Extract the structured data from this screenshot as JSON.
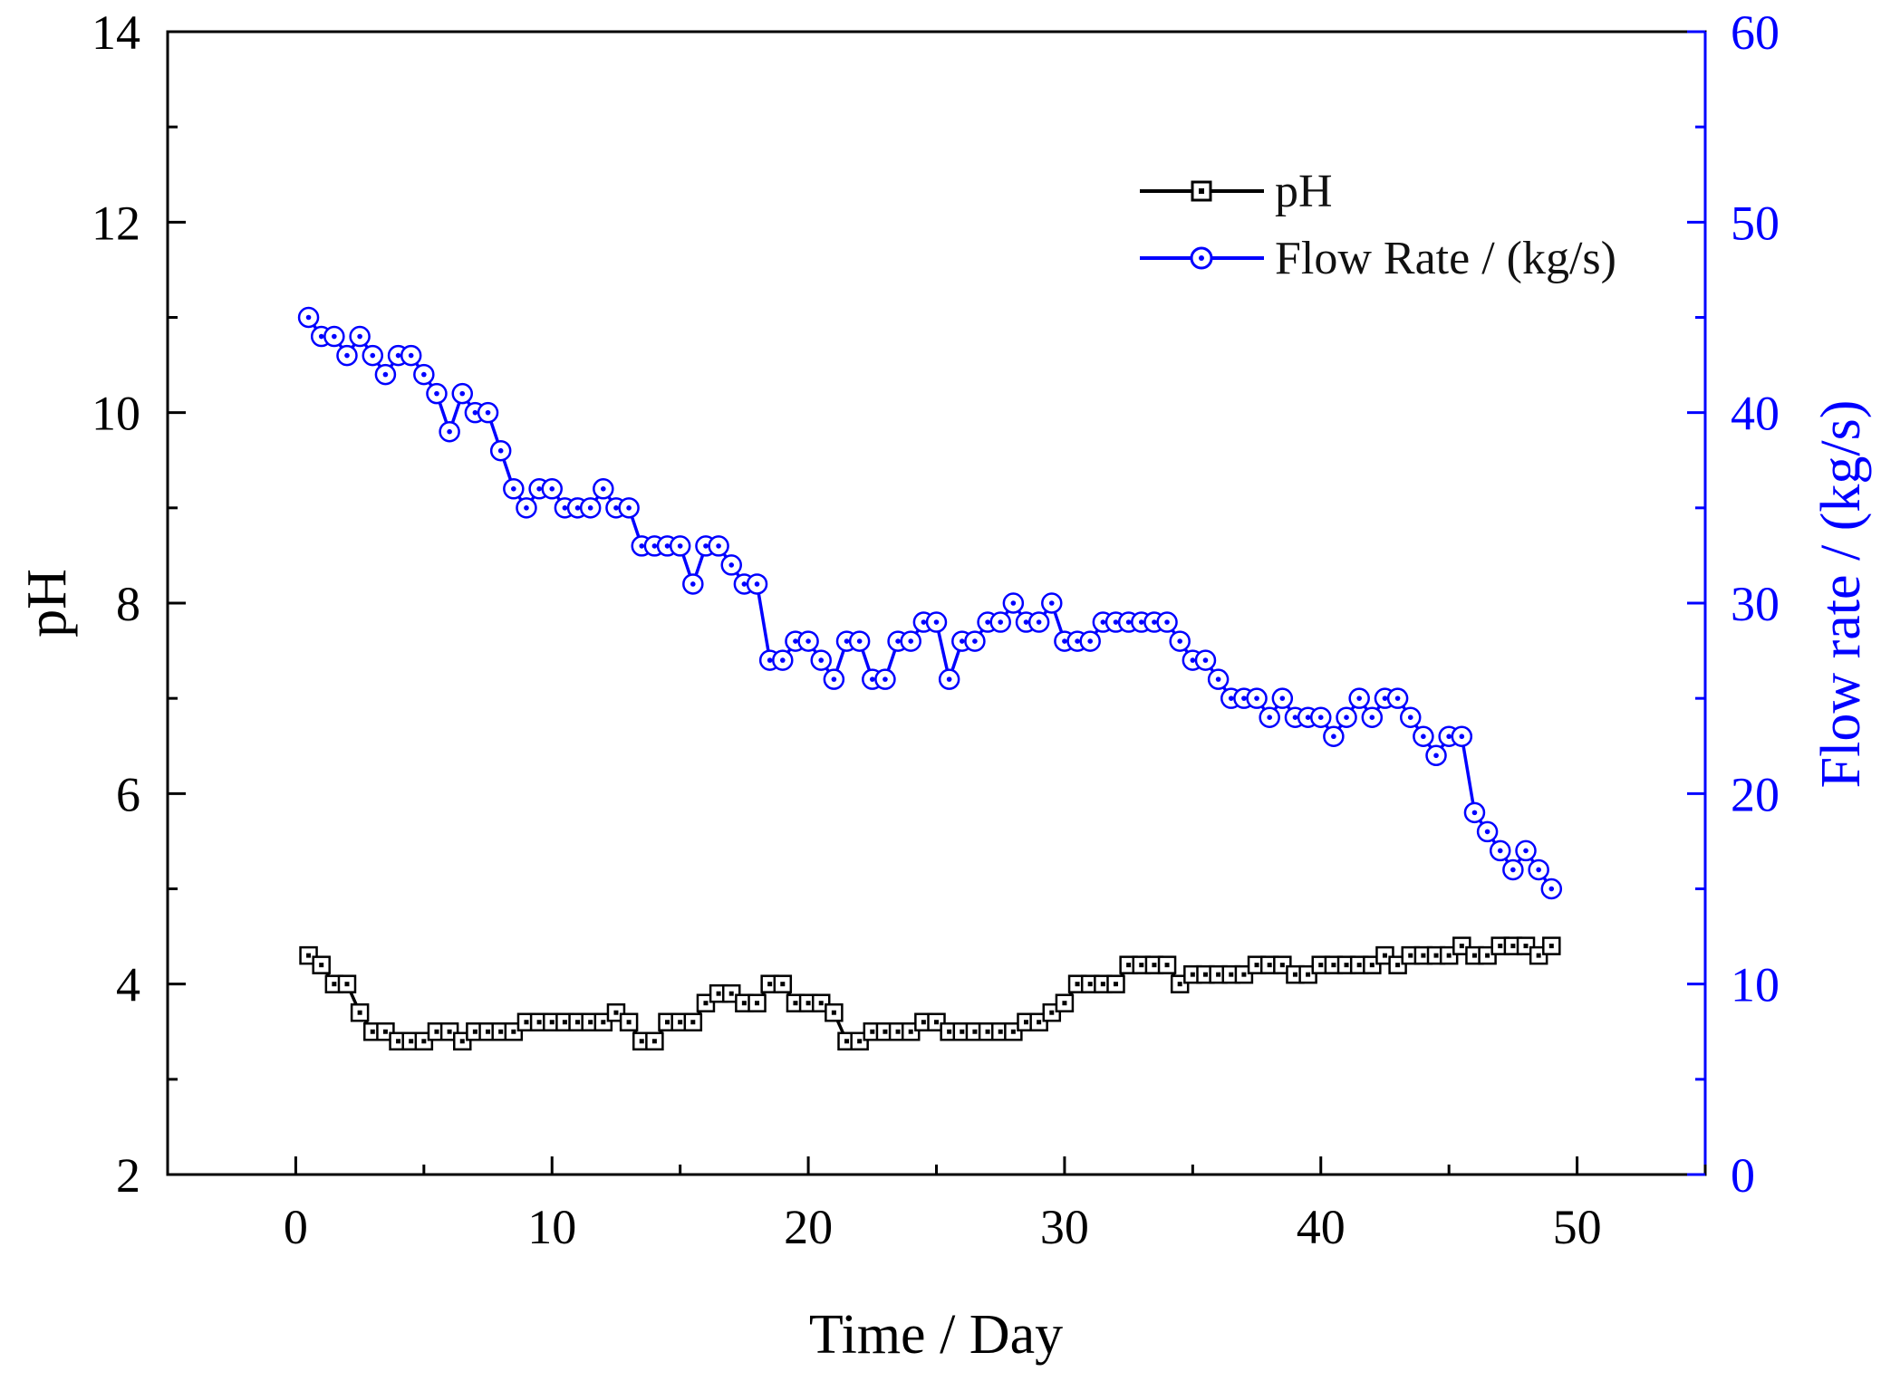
{
  "chart_data": {
    "type": "line",
    "xlabel": "Time / Day",
    "ylabel_left": "pH",
    "ylabel_right": "Flow rate / (kg/s)",
    "xlim": [
      -5,
      55
    ],
    "ylim_left": [
      2,
      14
    ],
    "ylim_right": [
      0,
      60
    ],
    "x_ticks": [
      0,
      10,
      20,
      30,
      40,
      50
    ],
    "y_left_ticks": [
      2,
      4,
      6,
      8,
      10,
      12,
      14
    ],
    "y_right_ticks": [
      0,
      10,
      20,
      30,
      40,
      50,
      60
    ],
    "x_tick_labels": [
      "0",
      "10",
      "20",
      "30",
      "40",
      "50"
    ],
    "y_left_tick_labels": [
      "2",
      "4",
      "6",
      "8",
      "10",
      "12",
      "14"
    ],
    "y_right_tick_labels": [
      "0",
      "10",
      "20",
      "30",
      "40",
      "50",
      "60"
    ],
    "legend_position": "top-right",
    "grid": false,
    "colors": {
      "ph": "#000000",
      "flow": "#0000ff",
      "right_axis": "#0000ff",
      "frame": "#000000"
    },
    "series": [
      {
        "name": "pH",
        "axis": "left",
        "marker": "square",
        "points": [
          [
            0.5,
            4.3
          ],
          [
            1.0,
            4.2
          ],
          [
            1.5,
            4.0
          ],
          [
            2.0,
            4.0
          ],
          [
            2.5,
            3.7
          ],
          [
            3.0,
            3.5
          ],
          [
            3.5,
            3.5
          ],
          [
            4.0,
            3.4
          ],
          [
            4.5,
            3.4
          ],
          [
            5.0,
            3.4
          ],
          [
            5.5,
            3.5
          ],
          [
            6.0,
            3.5
          ],
          [
            6.5,
            3.4
          ],
          [
            7.0,
            3.5
          ],
          [
            7.5,
            3.5
          ],
          [
            8.0,
            3.5
          ],
          [
            8.5,
            3.5
          ],
          [
            9.0,
            3.6
          ],
          [
            9.5,
            3.6
          ],
          [
            10.0,
            3.6
          ],
          [
            10.5,
            3.6
          ],
          [
            11.0,
            3.6
          ],
          [
            11.5,
            3.6
          ],
          [
            12.0,
            3.6
          ],
          [
            12.5,
            3.7
          ],
          [
            13.0,
            3.6
          ],
          [
            13.5,
            3.4
          ],
          [
            14.0,
            3.4
          ],
          [
            14.5,
            3.6
          ],
          [
            15.0,
            3.6
          ],
          [
            15.5,
            3.6
          ],
          [
            16.0,
            3.8
          ],
          [
            16.5,
            3.9
          ],
          [
            17.0,
            3.9
          ],
          [
            17.5,
            3.8
          ],
          [
            18.0,
            3.8
          ],
          [
            18.5,
            4.0
          ],
          [
            19.0,
            4.0
          ],
          [
            19.5,
            3.8
          ],
          [
            20.0,
            3.8
          ],
          [
            20.5,
            3.8
          ],
          [
            21.0,
            3.7
          ],
          [
            21.5,
            3.4
          ],
          [
            22.0,
            3.4
          ],
          [
            22.5,
            3.5
          ],
          [
            23.0,
            3.5
          ],
          [
            23.5,
            3.5
          ],
          [
            24.0,
            3.5
          ],
          [
            24.5,
            3.6
          ],
          [
            25.0,
            3.6
          ],
          [
            25.5,
            3.5
          ],
          [
            26.0,
            3.5
          ],
          [
            26.5,
            3.5
          ],
          [
            27.0,
            3.5
          ],
          [
            27.5,
            3.5
          ],
          [
            28.0,
            3.5
          ],
          [
            28.5,
            3.6
          ],
          [
            29.0,
            3.6
          ],
          [
            29.5,
            3.7
          ],
          [
            30.0,
            3.8
          ],
          [
            30.5,
            4.0
          ],
          [
            31.0,
            4.0
          ],
          [
            31.5,
            4.0
          ],
          [
            32.0,
            4.0
          ],
          [
            32.5,
            4.2
          ],
          [
            33.0,
            4.2
          ],
          [
            33.5,
            4.2
          ],
          [
            34.0,
            4.2
          ],
          [
            34.5,
            4.0
          ],
          [
            35.0,
            4.1
          ],
          [
            35.5,
            4.1
          ],
          [
            36.0,
            4.1
          ],
          [
            36.5,
            4.1
          ],
          [
            37.0,
            4.1
          ],
          [
            37.5,
            4.2
          ],
          [
            38.0,
            4.2
          ],
          [
            38.5,
            4.2
          ],
          [
            39.0,
            4.1
          ],
          [
            39.5,
            4.1
          ],
          [
            40.0,
            4.2
          ],
          [
            40.5,
            4.2
          ],
          [
            41.0,
            4.2
          ],
          [
            41.5,
            4.2
          ],
          [
            42.0,
            4.2
          ],
          [
            42.5,
            4.3
          ],
          [
            43.0,
            4.2
          ],
          [
            43.5,
            4.3
          ],
          [
            44.0,
            4.3
          ],
          [
            44.5,
            4.3
          ],
          [
            45.0,
            4.3
          ],
          [
            45.5,
            4.4
          ],
          [
            46.0,
            4.3
          ],
          [
            46.5,
            4.3
          ],
          [
            47.0,
            4.4
          ],
          [
            47.5,
            4.4
          ],
          [
            48.0,
            4.4
          ],
          [
            48.5,
            4.3
          ],
          [
            49.0,
            4.4
          ]
        ]
      },
      {
        "name": "Flow Rate / (kg/s)",
        "axis": "right",
        "marker": "circle",
        "points": [
          [
            0.5,
            45
          ],
          [
            1.0,
            44
          ],
          [
            1.5,
            44
          ],
          [
            2.0,
            43
          ],
          [
            2.5,
            44
          ],
          [
            3.0,
            43
          ],
          [
            3.5,
            42
          ],
          [
            4.0,
            43
          ],
          [
            4.5,
            43
          ],
          [
            5.0,
            42
          ],
          [
            5.5,
            41
          ],
          [
            6.0,
            39
          ],
          [
            6.5,
            41
          ],
          [
            7.0,
            40
          ],
          [
            7.5,
            40
          ],
          [
            8.0,
            38
          ],
          [
            8.5,
            36
          ],
          [
            9.0,
            35
          ],
          [
            9.5,
            36
          ],
          [
            10.0,
            36
          ],
          [
            10.5,
            35
          ],
          [
            11.0,
            35
          ],
          [
            11.5,
            35
          ],
          [
            12.0,
            36
          ],
          [
            12.5,
            35
          ],
          [
            13.0,
            35
          ],
          [
            13.5,
            33
          ],
          [
            14.0,
            33
          ],
          [
            14.5,
            33
          ],
          [
            15.0,
            33
          ],
          [
            15.5,
            31
          ],
          [
            16.0,
            33
          ],
          [
            16.5,
            33
          ],
          [
            17.0,
            32
          ],
          [
            17.5,
            31
          ],
          [
            18.0,
            31
          ],
          [
            18.5,
            27
          ],
          [
            19.0,
            27
          ],
          [
            19.5,
            28
          ],
          [
            20.0,
            28
          ],
          [
            20.5,
            27
          ],
          [
            21.0,
            26
          ],
          [
            21.5,
            28
          ],
          [
            22.0,
            28
          ],
          [
            22.5,
            26
          ],
          [
            23.0,
            26
          ],
          [
            23.5,
            28
          ],
          [
            24.0,
            28
          ],
          [
            24.5,
            29
          ],
          [
            25.0,
            29
          ],
          [
            25.5,
            26
          ],
          [
            26.0,
            28
          ],
          [
            26.5,
            28
          ],
          [
            27.0,
            29
          ],
          [
            27.5,
            29
          ],
          [
            28.0,
            30
          ],
          [
            28.5,
            29
          ],
          [
            29.0,
            29
          ],
          [
            29.5,
            30
          ],
          [
            30.0,
            28
          ],
          [
            30.5,
            28
          ],
          [
            31.0,
            28
          ],
          [
            31.5,
            29
          ],
          [
            32.0,
            29
          ],
          [
            32.5,
            29
          ],
          [
            33.0,
            29
          ],
          [
            33.5,
            29
          ],
          [
            34.0,
            29
          ],
          [
            34.5,
            28
          ],
          [
            35.0,
            27
          ],
          [
            35.5,
            27
          ],
          [
            36.0,
            26
          ],
          [
            36.5,
            25
          ],
          [
            37.0,
            25
          ],
          [
            37.5,
            25
          ],
          [
            38.0,
            24
          ],
          [
            38.5,
            25
          ],
          [
            39.0,
            24
          ],
          [
            39.5,
            24
          ],
          [
            40.0,
            24
          ],
          [
            40.5,
            23
          ],
          [
            41.0,
            24
          ],
          [
            41.5,
            25
          ],
          [
            42.0,
            24
          ],
          [
            42.5,
            25
          ],
          [
            43.0,
            25
          ],
          [
            43.5,
            24
          ],
          [
            44.0,
            23
          ],
          [
            44.5,
            22
          ],
          [
            45.0,
            23
          ],
          [
            45.5,
            23
          ],
          [
            46.0,
            19
          ],
          [
            46.5,
            18
          ],
          [
            47.0,
            17
          ],
          [
            47.5,
            16
          ],
          [
            48.0,
            17
          ],
          [
            48.5,
            16
          ],
          [
            49.0,
            15
          ]
        ]
      }
    ]
  }
}
